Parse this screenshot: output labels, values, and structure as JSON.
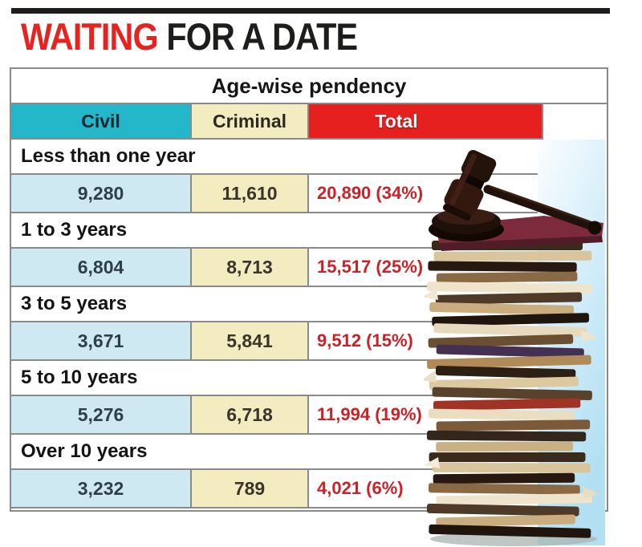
{
  "title": {
    "highlight": "WAITING",
    "rest": " FOR A DATE"
  },
  "table": {
    "caption": "Age-wise pendency",
    "columns": [
      "Civil",
      "Criminal",
      "Total"
    ],
    "rows": [
      {
        "label": "Less than one year",
        "civil": "9,280",
        "criminal": "11,610",
        "total": "20,890 (34%)"
      },
      {
        "label": "1 to 3 years",
        "civil": "6,804",
        "criminal": "8,713",
        "total": "15,517 (25%)"
      },
      {
        "label": "3 to 5 years",
        "civil": "3,671",
        "criminal": "5,841",
        "total": "9,512 (15%)"
      },
      {
        "label": "5 to 10 years",
        "civil": "5,276",
        "criminal": "6,718",
        "total": "11,994 (19%)"
      },
      {
        "label": "Over 10 years",
        "civil": "3,232",
        "criminal": "789",
        "total": "4,021 (6%)"
      }
    ]
  },
  "chart_data": {
    "type": "table",
    "title": "WAITING FOR A DATE",
    "subtitle": "Age-wise pendency",
    "columns": [
      "Civil",
      "Criminal",
      "Total"
    ],
    "categories": [
      "Less than one year",
      "1 to 3 years",
      "3 to 5 years",
      "5 to 10 years",
      "Over 10 years"
    ],
    "series": [
      {
        "name": "Civil",
        "values": [
          9280,
          6804,
          3671,
          5276,
          3232
        ]
      },
      {
        "name": "Criminal",
        "values": [
          11610,
          8713,
          5841,
          6718,
          789
        ]
      },
      {
        "name": "Total",
        "values": [
          20890,
          15517,
          9512,
          11994,
          4021
        ]
      },
      {
        "name": "Total percent",
        "values": [
          34,
          25,
          15,
          19,
          6
        ]
      }
    ]
  },
  "illustration": {
    "name": "gavel-on-stack-of-case-files"
  },
  "colors": {
    "headline_red": "#e6231f",
    "ink_black": "#1d1d1b",
    "civil_header_teal": "#24b7c9",
    "criminal_cream": "#f2ecc0",
    "total_red": "#e6201e",
    "civil_cell_blue": "#cfe9f3",
    "value_red": "#cb2127",
    "border_gray": "#8a8a8a",
    "photo_sky_blue": "#b2e0f2"
  }
}
